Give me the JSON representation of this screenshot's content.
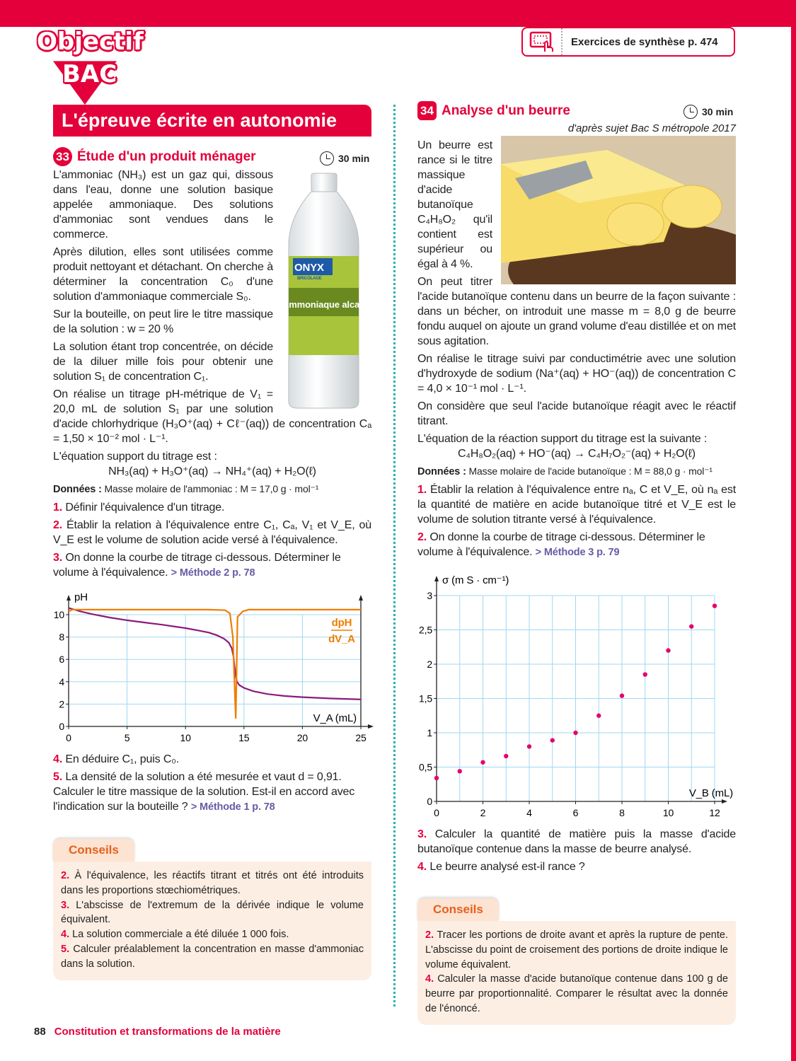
{
  "colors": {
    "accent": "#e4003a",
    "divider": "#2ab3a6",
    "ph_curve": "#8b1a7e",
    "derivative_curve": "#f07d00",
    "points": "#e6006e",
    "grid": "#9fd8f2",
    "conseils_bg": "#fdeee3"
  },
  "header": {
    "logo_line1": "Objectif",
    "logo_line2": "BAC",
    "synthese_icon": "touch-screen-icon",
    "synthese_label": "Exercices de synthèse p. 474"
  },
  "banner": "L'épreuve écrite en autonomie",
  "ex33": {
    "num": "33",
    "title": "Étude d'un produit ménager",
    "time": "30 min",
    "bottle": {
      "brand": "ONYX",
      "sub": "BRICOLAGE",
      "label": "Ammoniaque alcali"
    },
    "p1": "L'ammoniac (NH₃) est un gaz qui, dissous dans l'eau, donne une solution basique appelée ammoniaque. Des solutions d'ammoniac sont vendues dans le commerce.",
    "p2": "Après dilution, elles sont utilisées comme produit nettoyant et détachant. On cherche à déterminer la concentration C₀ d'une solution d'ammoniaque commerciale S₀.",
    "p3": "Sur la bouteille, on peut lire le titre massique de la solution : w = 20 %",
    "p4": "La solution étant trop concentrée, on décide de la diluer mille fois pour obtenir une solution S₁ de concentration C₁.",
    "p5": "On réalise un titrage pH-métrique de V₁ = 20,0 mL de solution S₁ par une solution d'acide chlorhydrique (H₃O⁺(aq) + Cℓ⁻(aq)) de concentration Cₐ = 1,50 × 10⁻² mol · L⁻¹.",
    "p6": "L'équation support du titrage est :",
    "equation": "NH₃(aq) + H₃O⁺(aq) → NH₄⁺(aq) + H₂O(ℓ)",
    "donnees_label": "Données :",
    "donnees": " Masse molaire de l'ammoniac : M = 17,0 g · mol⁻¹",
    "questions": [
      {
        "n": "1.",
        "text": " Définir l'équivalence d'un titrage."
      },
      {
        "n": "2.",
        "text": " Établir la relation à l'équivalence entre C₁, Cₐ, V₁ et V_E, où V_E est le volume de solution acide versé à l'équivalence."
      },
      {
        "n": "3.",
        "text": " On donne la courbe de titrage ci-dessous. Déterminer le volume à l'équivalence. ",
        "link": "> Méthode 2 p. 78"
      },
      {
        "n": "4.",
        "text": " En déduire C₁, puis C₀."
      },
      {
        "n": "5.",
        "text": " La densité de la solution a été mesurée et vaut d = 0,91. Calculer le titre massique de la solution. Est-il en accord avec l'indication sur la bouteille ? ",
        "link": "> Méthode 1 p. 78"
      }
    ],
    "conseils_title": "Conseils",
    "conseils": [
      {
        "n": "2.",
        "text": " À l'équivalence, les réactifs titrant et titrés ont été introduits dans les proportions stœchiométriques."
      },
      {
        "n": "3.",
        "text": " L'abscisse de l'extremum de la dérivée indique le volume équivalent."
      },
      {
        "n": "4.",
        "text": " La solution commerciale a été diluée 1 000 fois."
      },
      {
        "n": "5.",
        "text": " Calculer préalablement la concentration en masse d'ammoniac dans la solution."
      }
    ]
  },
  "ex34": {
    "num": "34",
    "title": "Analyse d'un beurre",
    "time": "30 min",
    "source": "d'après sujet Bac S métropole 2017",
    "p1": "Un beurre est rance si le titre massique d'acide butanoïque C₄H₈O₂ qu'il contient est supérieur ou égal à 4 %.",
    "p2": "On peut titrer l'acide butanoïque contenu dans un beurre de la façon suivante : dans un bécher, on introduit une masse m = 8,0 g de beurre fondu auquel on ajoute un grand volume d'eau distillée et on met sous agitation.",
    "p3": "On réalise le titrage suivi par conductimétrie avec une solution d'hydroxyde de sodium (Na⁺(aq) + HO⁻(aq)) de concentration C = 4,0 × 10⁻¹ mol · L⁻¹.",
    "p4": "On considère que seul l'acide butanoïque réagit avec le réactif titrant.",
    "p5": "L'équation de la réaction support du titrage est la suivante :",
    "equation": "C₄H₈O₂(aq) + HO⁻(aq) → C₄H₇O₂⁻(aq) + H₂O(ℓ)",
    "donnees_label": "Données :",
    "donnees": " Masse molaire de l'acide butanoïque : M = 88,0 g · mol⁻¹",
    "questions": [
      {
        "n": "1.",
        "text": " Établir la relation à l'équivalence entre nₐ, C et V_E, où nₐ est la quantité de matière en acide butanoïque titré et V_E est le volume de solution titrante versé à l'équivalence."
      },
      {
        "n": "2.",
        "text": " On donne la courbe de titrage ci-dessous. Déterminer le volume à l'équivalence. ",
        "link": "> Méthode 3 p. 79"
      },
      {
        "n": "3.",
        "text": " Calculer la quantité de matière puis la masse d'acide butanoïque contenue dans la masse de beurre analysé."
      },
      {
        "n": "4.",
        "text": " Le beurre analysé est-il rance ?"
      }
    ],
    "conseils_title": "Conseils",
    "conseils": [
      {
        "n": "2.",
        "text": " Tracer les portions de droite avant et après la rupture de pente. L'abscisse du point de croisement des portions de droite indique le volume équivalent."
      },
      {
        "n": "4.",
        "text": " Calculer la masse d'acide butanoïque contenue dans 100 g de beurre par proportionnalité. Comparer le résultat avec la donnée de l'énoncé."
      }
    ]
  },
  "chart_data": [
    {
      "type": "line",
      "ylabel": "pH",
      "xlabel": "V_A (mL)",
      "series_label": "dpH / dV_A",
      "xlim": [
        0,
        25
      ],
      "ylim": [
        0,
        10
      ],
      "xticks": [
        "0",
        "5",
        "10",
        "15",
        "20",
        "25"
      ],
      "yticks": [
        "0",
        "2",
        "4",
        "6",
        "8",
        "10"
      ],
      "grid": true,
      "series": [
        {
          "values_x": [
            0,
            1,
            2,
            3.5,
            5,
            6.5,
            8,
            9,
            10,
            11,
            12,
            12.7,
            13.3,
            13.7,
            13.95,
            14.1,
            14.2,
            14.3,
            14.4,
            14.6,
            15,
            15.8,
            17,
            18.5,
            20,
            22.5,
            25
          ],
          "values_y": [
            10.6,
            10.3,
            10.05,
            9.75,
            9.5,
            9.3,
            9.1,
            8.95,
            8.8,
            8.6,
            8.4,
            8.15,
            7.85,
            7.5,
            7.0,
            6.3,
            5.3,
            4.5,
            4.0,
            3.7,
            3.45,
            3.15,
            2.9,
            2.72,
            2.62,
            2.5,
            2.42
          ]
        },
        {
          "values_x": [
            0,
            0.3,
            12,
            13.4,
            13.8,
            14.05,
            14.3,
            14.45,
            14.9,
            15.4,
            25
          ],
          "values_y": [
            10.3,
            10.45,
            10.45,
            10.4,
            10.1,
            8.0,
            0.7,
            9.8,
            10.3,
            10.45,
            10.45
          ]
        }
      ]
    },
    {
      "type": "scatter",
      "ylabel": "σ (m S · cm⁻¹)",
      "xlabel": "V_B (mL)",
      "xlim": [
        0,
        12
      ],
      "ylim": [
        0,
        3
      ],
      "xticks": [
        "0",
        "2",
        "4",
        "6",
        "8",
        "10",
        "12"
      ],
      "yticks": [
        "0",
        "0,5",
        "1",
        "1,5",
        "2",
        "2,5",
        "3"
      ],
      "grid": true,
      "x": [
        0,
        1,
        2,
        3,
        4,
        5,
        6,
        7,
        8,
        9,
        10,
        11,
        12
      ],
      "y": [
        0.34,
        0.44,
        0.57,
        0.66,
        0.8,
        0.89,
        1.0,
        1.25,
        1.54,
        1.85,
        2.2,
        2.55,
        2.85
      ]
    }
  ],
  "footer": {
    "page": "88",
    "title": "Constitution et transformations de la matière"
  }
}
